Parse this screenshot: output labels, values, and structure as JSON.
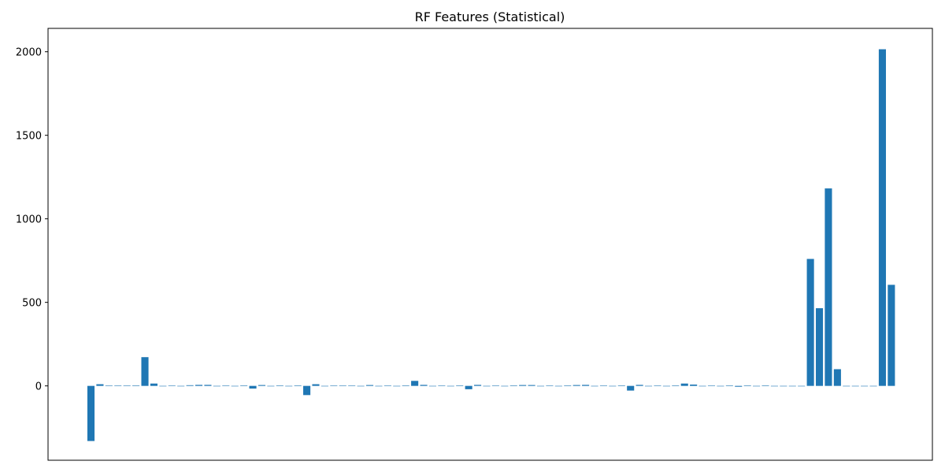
{
  "chart_data": {
    "type": "bar",
    "title": "RF Features (Statistical)",
    "xlabel": "",
    "ylabel": "",
    "ylim": [
      -445,
      2140
    ],
    "yticks": [
      0,
      500,
      1000,
      1500,
      2000
    ],
    "xticks_visible": false,
    "grid": false,
    "legend": "none",
    "bar_color": "#1f77b4",
    "values": [
      -330,
      10,
      2,
      2,
      2,
      3,
      172,
      14,
      0,
      2,
      0,
      4,
      6,
      6,
      0,
      2,
      0,
      3,
      -16,
      5,
      0,
      3,
      0,
      3,
      -55,
      10,
      0,
      2,
      2,
      2,
      0,
      5,
      0,
      2,
      0,
      3,
      30,
      6,
      0,
      2,
      0,
      3,
      -20,
      6,
      0,
      2,
      0,
      3,
      5,
      5,
      0,
      2,
      0,
      3,
      5,
      6,
      0,
      2,
      0,
      3,
      -28,
      6,
      0,
      2,
      0,
      3,
      14,
      8,
      0,
      2,
      0,
      3,
      -5,
      3,
      0,
      3,
      0,
      0,
      0,
      0,
      760,
      465,
      1182,
      100,
      0,
      0,
      0,
      0,
      2015,
      605
    ]
  }
}
